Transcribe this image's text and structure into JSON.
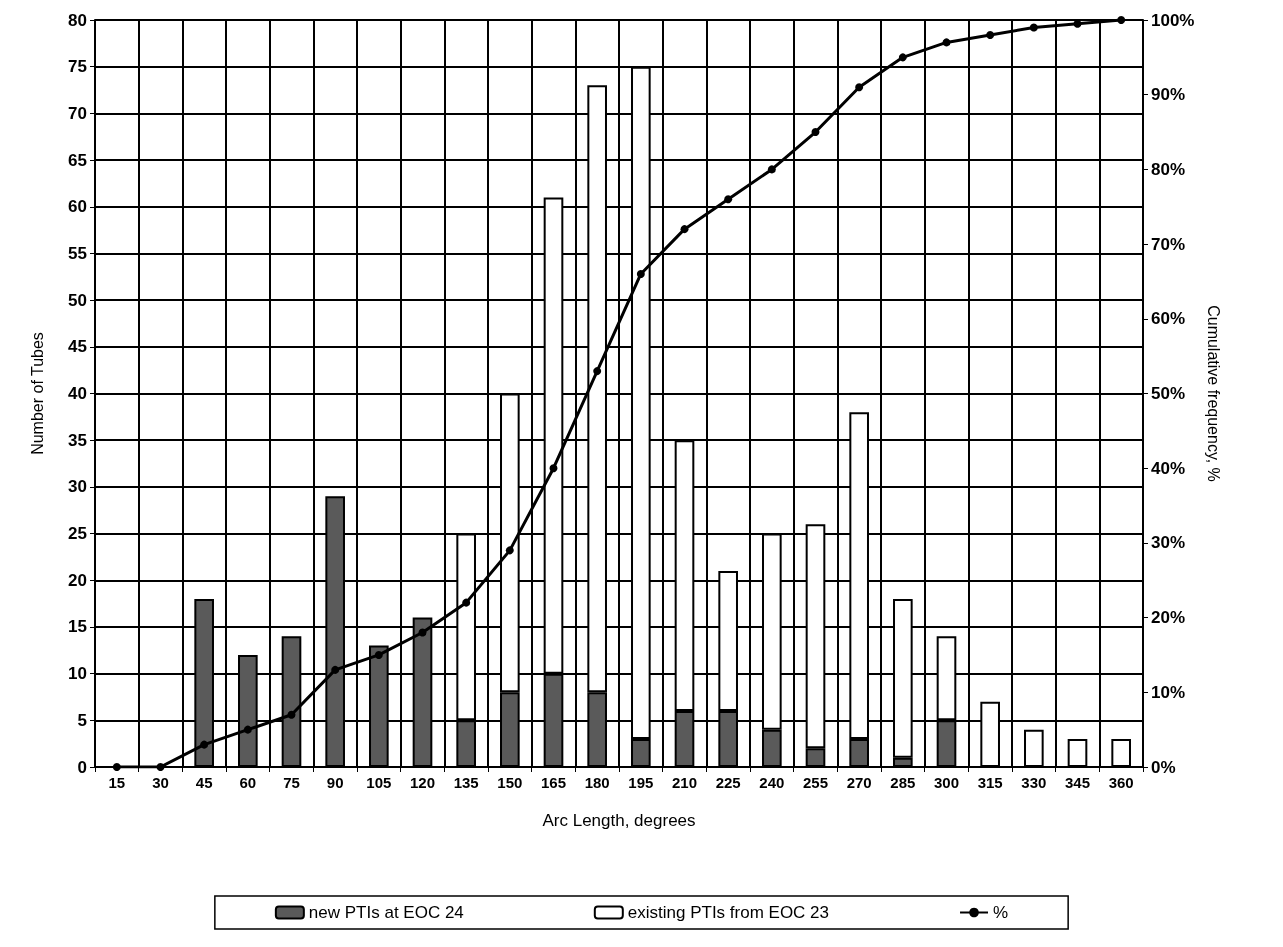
{
  "chart_data": {
    "type": "bar",
    "stacked": true,
    "xlabel": "Arc Length, degrees",
    "ylabel": "Number of Tubes",
    "y2label": "Cumulative frequency, %",
    "categories": [
      "15",
      "30",
      "45",
      "60",
      "75",
      "90",
      "105",
      "120",
      "135",
      "150",
      "165",
      "180",
      "195",
      "210",
      "225",
      "240",
      "255",
      "270",
      "285",
      "300",
      "315",
      "330",
      "345",
      "360"
    ],
    "series": [
      {
        "name": "new PTIs at EOC 24",
        "color": "#5a5a5a",
        "values": [
          0,
          0,
          18,
          12,
          14,
          29,
          13,
          16,
          5,
          8,
          10,
          8,
          3,
          6,
          6,
          4,
          2,
          3,
          1,
          5,
          0,
          0,
          0,
          0
        ]
      },
      {
        "name": "existing PTIs from EOC 23",
        "color": "#ffffff",
        "values": [
          0,
          0,
          0,
          0,
          0,
          0,
          0,
          0,
          20,
          32,
          51,
          65,
          72,
          29,
          15,
          21,
          24,
          35,
          17,
          9,
          7,
          4,
          3,
          3
        ]
      },
      {
        "name": "%",
        "type": "line",
        "axis": "y2",
        "color": "#000000",
        "marker": "circle",
        "values": [
          0,
          0,
          3,
          5,
          7,
          13,
          15,
          18,
          22,
          29,
          40,
          53,
          66,
          72,
          76,
          80,
          85,
          91,
          95,
          97,
          98,
          99,
          99.5,
          100
        ]
      }
    ],
    "ylim": [
      0,
      80
    ],
    "yticks": [
      0,
      5,
      10,
      15,
      20,
      25,
      30,
      35,
      40,
      45,
      50,
      55,
      60,
      65,
      70,
      75,
      80
    ],
    "y2lim": [
      0,
      100
    ],
    "y2ticks": [
      {
        "value": 0,
        "label": "0%"
      },
      {
        "value": 10,
        "label": "10%"
      },
      {
        "value": 20,
        "label": "20%"
      },
      {
        "value": 30,
        "label": "30%"
      },
      {
        "value": 40,
        "label": "40%"
      },
      {
        "value": 50,
        "label": "50%"
      },
      {
        "value": 60,
        "label": "60%"
      },
      {
        "value": 70,
        "label": "70%"
      },
      {
        "value": 80,
        "label": "80%"
      },
      {
        "value": 90,
        "label": "90%"
      },
      {
        "value": 100,
        "label": "100%"
      }
    ],
    "grid": true,
    "legend": "bottom"
  }
}
